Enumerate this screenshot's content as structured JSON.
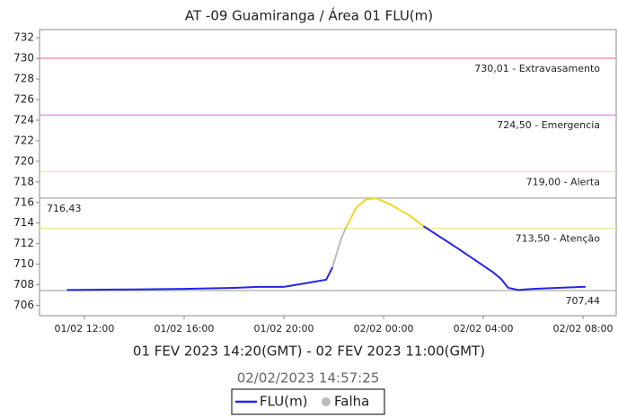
{
  "chart_data": {
    "type": "line",
    "title": "AT -09 Guamiranga / Área 01 FLU(m)",
    "x_label": "01 FEV 2023 14:20(GMT) - 02 FEV 2023 11:00(GMT)",
    "subtitle": "02/02/2023 14:57:25",
    "xlim": [
      10.2,
      33.33
    ],
    "xticks": [
      {
        "value": 12,
        "label": "01/02 12:00"
      },
      {
        "value": 16,
        "label": "01/02 16:00"
      },
      {
        "value": 20,
        "label": "01/02 20:00"
      },
      {
        "value": 24,
        "label": "02/02 00:00"
      },
      {
        "value": 28,
        "label": "02/02 04:00"
      },
      {
        "value": 32,
        "label": "02/02 08:00"
      }
    ],
    "ylim": [
      705,
      732.8
    ],
    "yticks": [
      706,
      708,
      710,
      712,
      714,
      716,
      718,
      720,
      722,
      724,
      726,
      728,
      730,
      732
    ],
    "annotations": [
      {
        "value": 730.01,
        "label": "730,01 - Extravasamento",
        "color": "#f08080",
        "corner": "right"
      },
      {
        "value": 724.5,
        "label": "724,50 - Emergencia",
        "color": "#ee82ee",
        "corner": "right"
      },
      {
        "value": 719,
        "label": "719,00 - Alerta",
        "color": "#f5deb3",
        "corner": "right"
      },
      {
        "value": 716.43,
        "label": "716,43",
        "color": "#aaaaaa",
        "corner": "left"
      },
      {
        "value": 713.5,
        "label": "713,50 - Atenção",
        "color": "#f0e68c",
        "corner": "right"
      },
      {
        "value": 707.44,
        "label": "707,44",
        "color": "#aaaaaa",
        "corner": "right"
      }
    ],
    "segments": [
      {
        "color": "#2424e8",
        "x": [
          11.3,
          14,
          16,
          18,
          19,
          20,
          21,
          21.7,
          21.95
        ],
        "values": [
          707.5,
          707.55,
          707.6,
          707.7,
          707.8,
          707.8,
          708.2,
          708.5,
          709.7
        ]
      },
      {
        "color": "#bbbbbb",
        "x": [
          21.95,
          22.3,
          22.5
        ],
        "values": [
          709.7,
          712.5,
          713.6
        ]
      },
      {
        "color": "#f0d820",
        "x": [
          22.5,
          22.9,
          23.3,
          23.7,
          24.2,
          25,
          25.6
        ],
        "values": [
          713.6,
          715.5,
          716.3,
          716.4,
          715.9,
          714.8,
          713.7
        ]
      },
      {
        "color": "#2424e8",
        "x": [
          25.6,
          27,
          28.4,
          28.7,
          29,
          29.4,
          30,
          32,
          32.1
        ],
        "values": [
          713.7,
          711.5,
          709.2,
          708.6,
          707.7,
          707.5,
          707.6,
          707.8,
          707.8
        ]
      }
    ],
    "legend": [
      {
        "label": "FLU(m)",
        "color": "#2424e8"
      },
      {
        "label": "Falha",
        "color": "#bbbbbb"
      }
    ]
  }
}
